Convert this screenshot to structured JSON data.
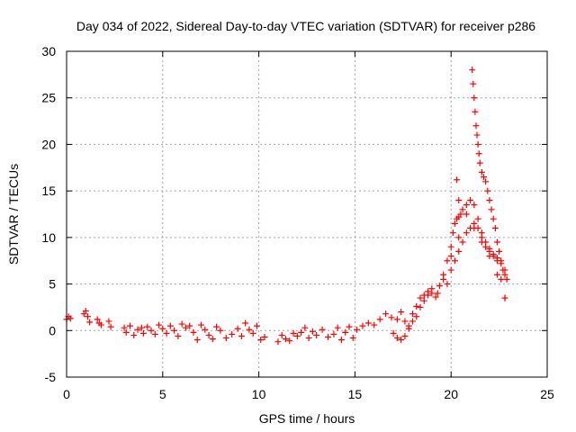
{
  "chart_data": {
    "type": "scatter",
    "title": "Day 034 of 2022, Sidereal Day-to-day VTEC variation (SDTVAR) for receiver p286",
    "xlabel": "GPS time / hours",
    "ylabel": "SDTVAR / TECUs",
    "xlim": [
      0,
      25
    ],
    "ylim": [
      -5,
      30
    ],
    "xticks": [
      0,
      5,
      10,
      15,
      20,
      25
    ],
    "yticks": [
      -5,
      0,
      5,
      10,
      15,
      20,
      25,
      30
    ],
    "grid": true,
    "marker": "+",
    "series": [
      {
        "name": "SDTVAR",
        "color": "#ff0000",
        "x": [
          0.0,
          0.1,
          0.2,
          0.9,
          1.0,
          1.1,
          1.2,
          1.6,
          1.7,
          1.8,
          2.2,
          2.3,
          3.0,
          3.1,
          3.3,
          3.5,
          3.7,
          3.9,
          4.0,
          4.2,
          4.4,
          4.6,
          4.8,
          5.0,
          5.2,
          5.4,
          5.6,
          5.8,
          6.0,
          6.2,
          6.4,
          6.6,
          6.8,
          7.0,
          7.2,
          7.4,
          7.6,
          7.8,
          8.0,
          8.3,
          8.6,
          8.9,
          9.1,
          9.3,
          9.5,
          9.7,
          9.9,
          10.1,
          10.3,
          11.0,
          11.2,
          11.4,
          11.6,
          11.8,
          12.0,
          12.2,
          12.4,
          12.6,
          12.8,
          13.0,
          13.3,
          13.6,
          13.9,
          14.1,
          14.3,
          14.5,
          14.7,
          14.9,
          15.1,
          15.4,
          15.7,
          16.0,
          16.3,
          16.6,
          16.9,
          17.0,
          17.2,
          17.4,
          17.6,
          17.8,
          18.0,
          18.2,
          18.4,
          18.6,
          18.8,
          19.0,
          19.2,
          19.4,
          19.6,
          19.8,
          20.0,
          20.1,
          20.2,
          20.3,
          20.4,
          20.5,
          20.6,
          20.8,
          21.0,
          21.2,
          21.4,
          21.6,
          21.8,
          22.0,
          22.2,
          22.4,
          22.6,
          22.8,
          19.8,
          20.0,
          20.2,
          20.4,
          20.6,
          20.8,
          21.0,
          21.2,
          21.4,
          21.6,
          21.8,
          22.0,
          22.2,
          22.4,
          22.6,
          22.8,
          21.1,
          21.15,
          21.2,
          21.25,
          21.3,
          21.35,
          21.4,
          21.45,
          21.5,
          21.6,
          21.7,
          21.8,
          21.9,
          22.0,
          22.1,
          22.2,
          22.3,
          22.4,
          22.5,
          22.6,
          22.7,
          22.8,
          22.9,
          20.3,
          20.4,
          17.2,
          17.4,
          17.6,
          17.8,
          18.0,
          18.2,
          18.4,
          18.6,
          18.8,
          19.0,
          19.3,
          19.6,
          20.0,
          20.4,
          20.8,
          21.2,
          21.6,
          22.0,
          22.4,
          22.8
        ],
        "y": [
          1.2,
          1.5,
          1.3,
          1.8,
          2.1,
          1.5,
          0.9,
          1.2,
          0.8,
          0.6,
          1.0,
          0.4,
          0.3,
          -0.2,
          0.5,
          -0.5,
          0.1,
          0.3,
          -0.3,
          0.4,
          0.0,
          -0.4,
          0.6,
          0.2,
          -0.3,
          0.5,
          0.0,
          -0.6,
          0.7,
          0.3,
          0.5,
          -0.2,
          -1.0,
          0.6,
          0.1,
          -0.5,
          -0.9,
          0.4,
          0.0,
          -0.8,
          -0.4,
          0.2,
          -0.6,
          0.8,
          0.1,
          -0.3,
          0.5,
          -1.0,
          -0.7,
          -1.2,
          -0.5,
          -0.9,
          -1.1,
          -0.3,
          -0.6,
          -0.2,
          0.3,
          -0.8,
          -0.1,
          -0.5,
          0.1,
          -0.7,
          -0.4,
          0.3,
          -1.0,
          -0.2,
          0.4,
          -0.8,
          0.1,
          0.5,
          0.8,
          0.6,
          1.2,
          1.8,
          1.4,
          -0.3,
          -0.8,
          -1.0,
          -0.6,
          0.2,
          1.0,
          1.5,
          2.5,
          3.2,
          3.8,
          4.0,
          3.6,
          4.8,
          6.0,
          7.5,
          9.0,
          10.5,
          11.5,
          12.0,
          12.2,
          12.5,
          13.0,
          13.5,
          14.0,
          13.5,
          12.0,
          10.5,
          9.5,
          8.8,
          8.2,
          7.8,
          7.2,
          6.5,
          5.0,
          6.5,
          7.5,
          8.5,
          9.5,
          10.5,
          11.0,
          11.5,
          11.0,
          10.0,
          9.0,
          8.5,
          8.0,
          7.5,
          5.5,
          3.5,
          28.0,
          26.5,
          25.0,
          23.5,
          22.0,
          21.0,
          20.0,
          19.0,
          18.0,
          17.0,
          16.5,
          16.0,
          15.0,
          14.0,
          13.0,
          12.0,
          11.0,
          9.5,
          8.5,
          7.5,
          6.5,
          6.0,
          5.5,
          16.2,
          14.0,
          1.2,
          2.0,
          1.0,
          0.5,
          1.8,
          2.6,
          3.5,
          3.8,
          4.2,
          4.5,
          4.0,
          5.5,
          8.0,
          10.0,
          12.5,
          11.0,
          9.5,
          8.0,
          6.0,
          3.5
        ]
      }
    ]
  }
}
